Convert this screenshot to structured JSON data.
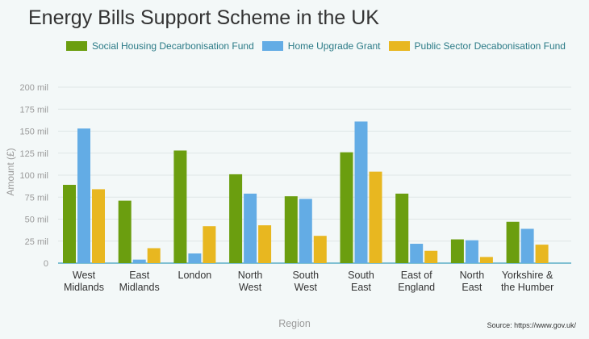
{
  "chart_data": {
    "type": "bar",
    "title": "Energy Bills Support Scheme in the UK",
    "xlabel": "Region",
    "ylabel": "Amount (£)",
    "categories": [
      [
        "West",
        "Midlands"
      ],
      [
        "East",
        "Midlands"
      ],
      [
        "London"
      ],
      [
        "North",
        "West"
      ],
      [
        "South",
        "West"
      ],
      [
        "South",
        "East"
      ],
      [
        "East of",
        "England"
      ],
      [
        "North",
        "East"
      ],
      [
        "Yorkshire &",
        "the Humber"
      ]
    ],
    "series": [
      {
        "name": "Social Housing Decarbonisation Fund",
        "color": "#6b9e0f",
        "values": [
          89,
          71,
          128,
          101,
          76,
          126,
          79,
          27,
          47
        ]
      },
      {
        "name": "Home Upgrade Grant",
        "color": "#63ace5",
        "values": [
          153,
          4,
          11,
          79,
          73,
          161,
          22,
          26,
          39
        ]
      },
      {
        "name": "Public Sector Decabonisation Fund",
        "color": "#e8b720",
        "values": [
          84,
          17,
          42,
          43,
          31,
          104,
          14,
          7,
          21
        ]
      }
    ],
    "yticks": [
      {
        "value": 0,
        "label": "0"
      },
      {
        "value": 25,
        "label": "25 mil"
      },
      {
        "value": 50,
        "label": "50 mil"
      },
      {
        "value": 75,
        "label": "75 mil"
      },
      {
        "value": 100,
        "label": "100 mil"
      },
      {
        "value": 125,
        "label": "125 mil"
      },
      {
        "value": 150,
        "label": "150 mil"
      },
      {
        "value": 175,
        "label": "175 mil"
      },
      {
        "value": 200,
        "label": "200 mil"
      }
    ],
    "ylim": [
      0,
      200
    ],
    "grid": true,
    "legend_position": "top"
  },
  "source": "Source: https://www.gov.uk/"
}
